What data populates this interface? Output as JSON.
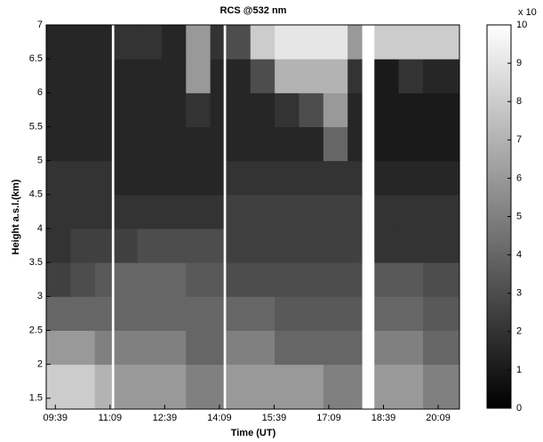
{
  "chart_data": {
    "type": "heatmap",
    "title": "RCS @532 nm",
    "x_label": "Time (UT)",
    "y_label": "Height a.s.l.(km)",
    "colorbar_label": "x 10",
    "x_bins": [
      564,
      604,
      644,
      672,
      676,
      714,
      754,
      794,
      834,
      856,
      860,
      900,
      940,
      980,
      1020,
      1060,
      1084,
      1104,
      1144,
      1184,
      1244
    ],
    "y_bins": [
      1.34,
      2,
      2.5,
      3,
      3.5,
      4,
      4.5,
      5,
      5.5,
      6,
      6.5,
      7
    ],
    "z": [
      [
        8,
        8,
        7,
        null,
        6,
        6,
        6,
        5,
        5,
        null,
        6,
        6,
        6,
        6,
        5,
        5,
        null,
        6,
        6,
        5
      ],
      [
        6,
        6,
        5,
        null,
        5,
        5,
        5,
        4,
        4,
        null,
        5,
        5,
        4,
        4,
        4,
        4,
        null,
        5,
        5,
        4
      ],
      [
        4,
        4,
        4,
        null,
        4,
        4,
        4,
        4,
        4,
        null,
        4,
        4,
        3.5,
        3.5,
        3.5,
        3.5,
        null,
        4,
        4,
        3.5
      ],
      [
        2.5,
        3,
        3.5,
        null,
        4,
        4,
        4,
        3.5,
        3.5,
        null,
        3,
        3,
        3,
        3,
        3,
        3,
        null,
        3.5,
        3.5,
        3
      ],
      [
        2,
        2.5,
        2.5,
        null,
        2.5,
        3,
        3,
        3,
        3,
        null,
        2.5,
        2.5,
        2.5,
        2.5,
        2.5,
        2.5,
        null,
        2,
        2,
        2
      ],
      [
        2,
        2,
        2,
        null,
        2,
        2,
        2,
        2,
        2,
        null,
        2.5,
        2.5,
        2.5,
        2.5,
        2.5,
        2.5,
        null,
        2,
        2,
        2
      ],
      [
        2,
        2,
        2,
        null,
        1.5,
        1.5,
        1.5,
        1.5,
        1.5,
        null,
        2,
        2,
        2,
        2,
        2,
        2,
        null,
        1.5,
        1.5,
        1.5
      ],
      [
        1.5,
        1.5,
        1.5,
        null,
        1.5,
        1.5,
        1.5,
        1.5,
        1.5,
        null,
        1.5,
        1.5,
        1.5,
        1.5,
        4,
        1.5,
        null,
        1,
        1,
        1
      ],
      [
        1.5,
        1.5,
        1.5,
        null,
        1.5,
        1.5,
        1.5,
        2,
        1.5,
        null,
        1.5,
        1.5,
        2,
        3,
        6,
        1.5,
        null,
        1,
        1,
        1
      ],
      [
        1.5,
        1.5,
        1.5,
        null,
        1.5,
        1.5,
        1.5,
        6,
        1.5,
        null,
        1.5,
        3,
        7,
        7,
        7,
        2,
        null,
        1,
        2,
        1.5
      ],
      [
        1.5,
        1.5,
        1.5,
        null,
        2,
        2,
        1.5,
        6,
        2,
        null,
        3,
        8,
        9,
        9,
        9,
        6,
        null,
        8,
        8,
        8
      ]
    ],
    "xlim": [
      564,
      1244
    ],
    "xticks": [
      {
        "value": 579,
        "label": "09:39"
      },
      {
        "value": 669,
        "label": "11:09"
      },
      {
        "value": 759,
        "label": "12:39"
      },
      {
        "value": 849,
        "label": "14:09"
      },
      {
        "value": 939,
        "label": "15:39"
      },
      {
        "value": 1029,
        "label": "17:09"
      },
      {
        "value": 1119,
        "label": "18:39"
      },
      {
        "value": 1209,
        "label": "20:09"
      }
    ],
    "ylim": [
      1.34,
      7
    ],
    "yticks": [
      1.5,
      2,
      2.5,
      3,
      3.5,
      4,
      4.5,
      5,
      5.5,
      6,
      6.5,
      7
    ],
    "zlim": [
      0,
      10
    ],
    "zticks": [
      0,
      1,
      2,
      3,
      4,
      5,
      6,
      7,
      8,
      9,
      10
    ]
  }
}
